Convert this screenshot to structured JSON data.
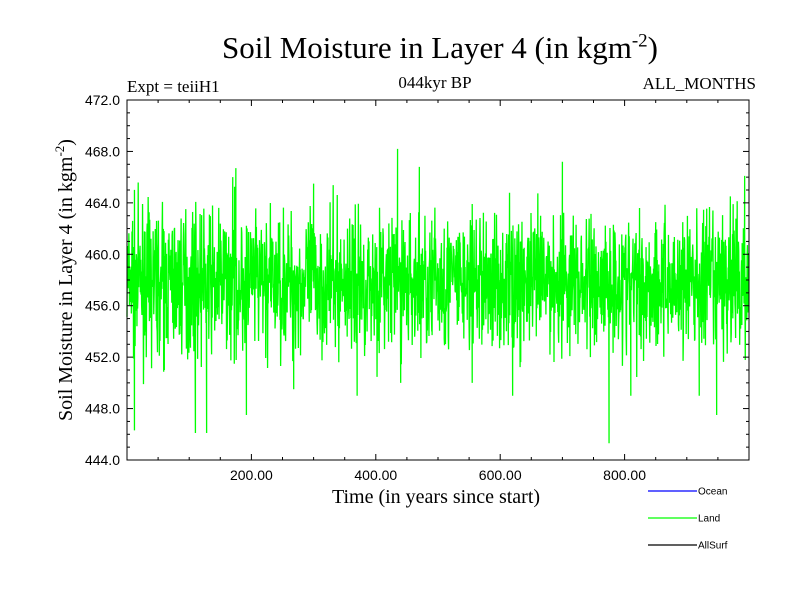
{
  "chart_data": {
    "type": "line",
    "title": "Soil Moisture in Layer 4 (in kgm",
    "title_exp": "-2",
    "title_close": ")",
    "subtitle_left": "Expt = teiiH1",
    "subtitle_center": "044kyr BP",
    "subtitle_right": "ALL_MONTHS",
    "xlabel": "Time (in years since start)",
    "ylabel": "Soil Moisture in Layer 4 (in kgm",
    "ylabel_exp": "-2",
    "ylabel_close": ")",
    "xlim": [
      0,
      1000
    ],
    "ylim": [
      444.0,
      472.0
    ],
    "xticks": [
      200,
      400,
      600,
      800
    ],
    "xtick_labels": [
      "200.00",
      "400.00",
      "600.00",
      "800.00"
    ],
    "yticks": [
      444,
      448,
      452,
      456,
      460,
      464,
      468,
      472
    ],
    "ytick_labels": [
      "444.0",
      "448.0",
      "452.0",
      "456.0",
      "460.0",
      "464.0",
      "468.0",
      "472.0"
    ],
    "grid": false,
    "legend_position": "bottom-right, below plot",
    "series": [
      {
        "name": "Land",
        "color": "#00ff00",
        "mean": 457.8,
        "x": [
          1,
          5,
          9,
          12,
          30,
          60,
          82,
          110,
          128,
          150,
          170,
          175,
          192,
          230,
          268,
          300,
          325,
          370,
          400,
          435,
          440,
          470,
          490,
          510,
          555,
          600,
          620,
          665,
          700,
          745,
          775,
          800,
          810,
          850,
          880,
          920,
          948,
          970,
          993,
          999
        ],
        "values": [
          458.0,
          456.5,
          462.6,
          446.3,
          457.5,
          451.0,
          460.5,
          446.1,
          446.1,
          458.0,
          466.0,
          466.7,
          447.5,
          459.0,
          449.5,
          465.5,
          457.0,
          449.0,
          458.0,
          468.2,
          450.0,
          466.8,
          454.0,
          462.0,
          450.0,
          458.0,
          449.0,
          463.0,
          467.2,
          452.0,
          445.3,
          458.0,
          449.0,
          462.5,
          456.0,
          449.0,
          447.5,
          464.5,
          466.1,
          458.0
        ]
      }
    ],
    "legend": [
      {
        "name": "Ocean",
        "color": "#0000ff"
      },
      {
        "name": "Land",
        "color": "#00ff00"
      },
      {
        "name": "AllSurf",
        "color": "#000000"
      }
    ]
  }
}
